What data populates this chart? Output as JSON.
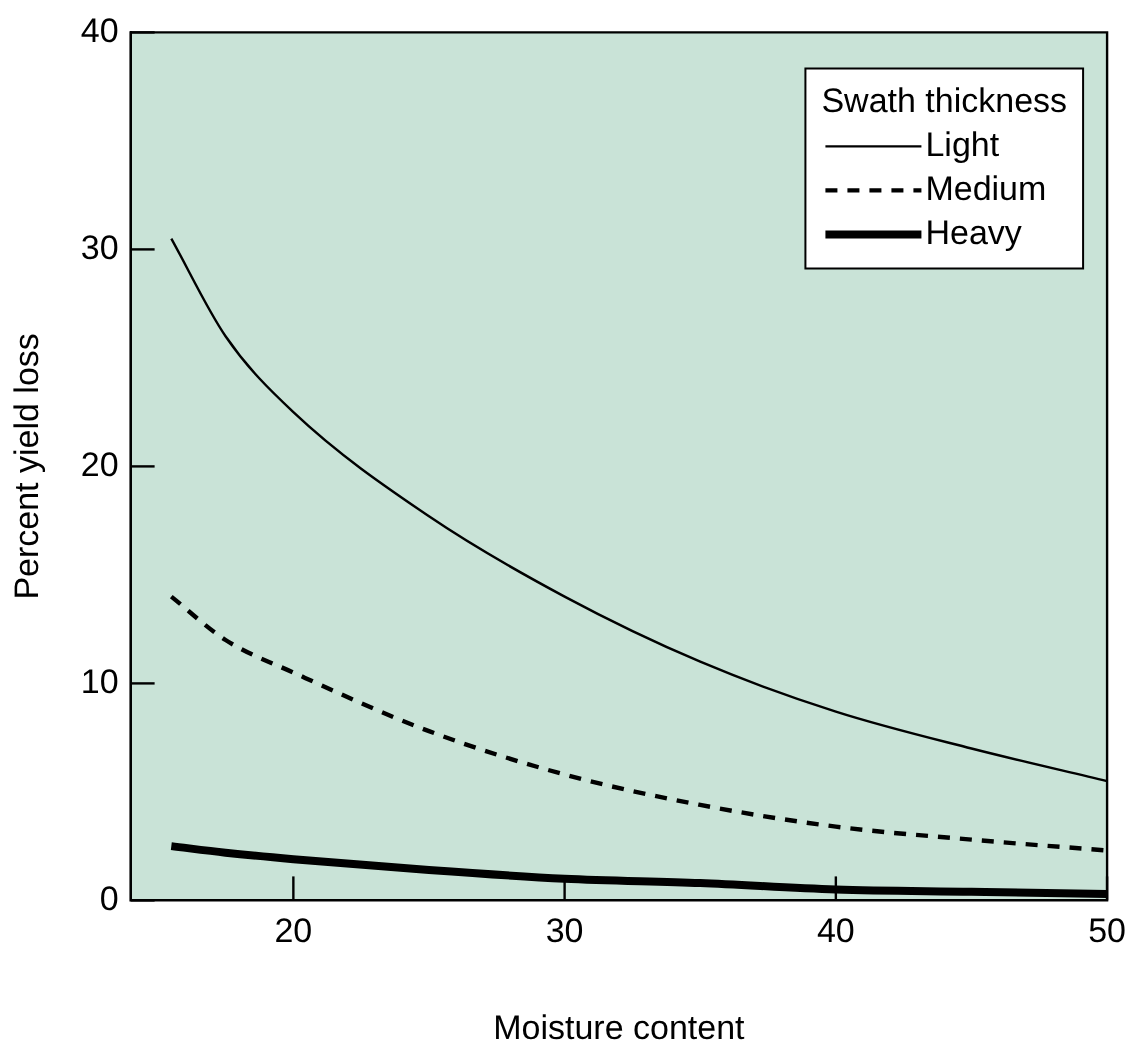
{
  "chart_data": {
    "type": "line",
    "xlabel": "Moisture content",
    "ylabel": "Percent yield loss",
    "legend_title": "Swath thickness",
    "legend": "top right",
    "grid": false,
    "marker": "none",
    "x": [
      15.5,
      17.5,
      20,
      25,
      30,
      35,
      40,
      45,
      50
    ],
    "xlim": [
      14,
      50
    ],
    "xticks": [
      20,
      30,
      40,
      50
    ],
    "ylim": [
      0,
      40
    ],
    "yticks": [
      0,
      10,
      20,
      30,
      40
    ],
    "series": [
      {
        "name": "Light",
        "color": "#000000",
        "line_style": "solid",
        "values": [
          30.5,
          26,
          22.5,
          17.7,
          14,
          11,
          8.7,
          7,
          5.5
        ]
      },
      {
        "name": "Medium",
        "color": "#000000",
        "line_style": "dashed",
        "values": [
          14,
          12,
          10.5,
          7.8,
          5.8,
          4.4,
          3.4,
          2.8,
          2.3
        ]
      },
      {
        "name": "Heavy",
        "color": "#000000",
        "line_style": "solid",
        "values": [
          2.5,
          2.2,
          1.9,
          1.4,
          1.0,
          0.8,
          0.5,
          0.4,
          0.3
        ]
      }
    ]
  }
}
